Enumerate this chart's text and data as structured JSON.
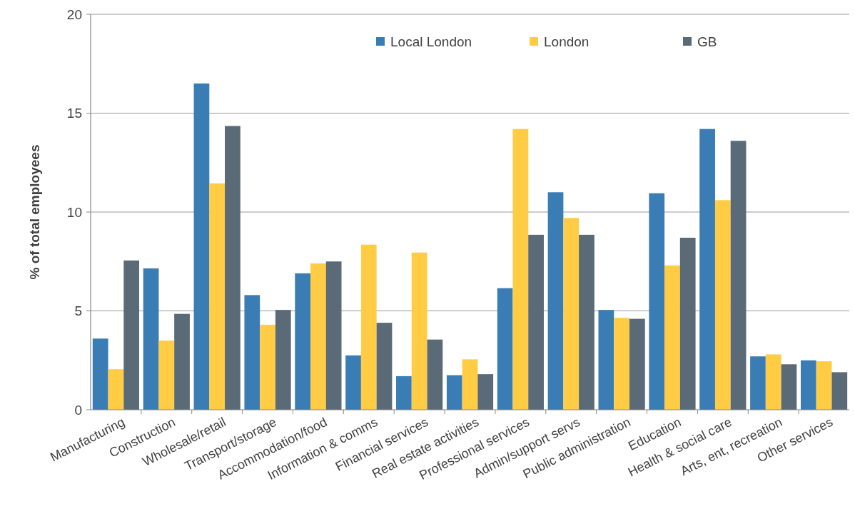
{
  "chart_data": {
    "type": "bar",
    "ylabel": "% of total employees",
    "categories": [
      "Manufacturing",
      "Construction",
      "Wholesale/retail",
      "Transport/storage",
      "Accommodation/food",
      "Information & comms",
      "Financial services",
      "Real estate activities",
      "Professional services",
      "Admin/support servs",
      "Public administration",
      "Education",
      "Health & social care",
      "Arts, ent, recreation",
      "Other services"
    ],
    "series": [
      {
        "name": "Local London",
        "color": "#3a7db5",
        "values": [
          3.6,
          7.15,
          16.5,
          5.8,
          6.9,
          2.75,
          1.7,
          1.75,
          6.15,
          11.0,
          5.05,
          10.95,
          14.2,
          2.7,
          2.5
        ]
      },
      {
        "name": "London",
        "color": "#ffcc44",
        "values": [
          2.05,
          3.5,
          11.45,
          4.3,
          7.4,
          8.35,
          7.95,
          2.55,
          14.2,
          9.7,
          4.65,
          7.3,
          10.6,
          2.8,
          2.45
        ]
      },
      {
        "name": "GB",
        "color": "#5a6a77",
        "values": [
          7.55,
          4.85,
          14.35,
          5.05,
          7.5,
          4.4,
          3.55,
          1.8,
          8.85,
          8.85,
          4.6,
          8.7,
          13.6,
          2.3,
          1.9
        ]
      }
    ],
    "ylim": [
      0,
      20
    ],
    "yticks": [
      0,
      5,
      10,
      15,
      20
    ],
    "grid": "y",
    "legend": "top"
  }
}
